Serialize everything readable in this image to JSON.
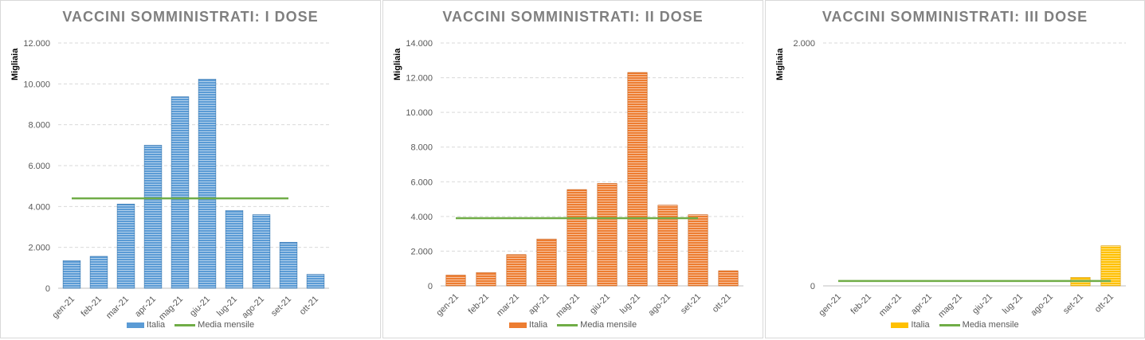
{
  "legend": {
    "series_label": "Italia",
    "avg_label": "Media mensile"
  },
  "colors": {
    "mean_line": "#70ad47",
    "grid": "#d9d9d9",
    "axis": "#bfbfbf",
    "tick_text": "#595959"
  },
  "chart_data": [
    {
      "type": "bar",
      "title": "VACCINI SOMMINISTRATI: I DOSE",
      "ylabel": "Migliaia",
      "xlabel": "",
      "ylim": [
        0,
        12000
      ],
      "yticks": [
        "0",
        "2.000",
        "4.000",
        "6.000",
        "8.000",
        "10.000",
        "12.000"
      ],
      "categories": [
        "gen-21",
        "feb-21",
        "mar-21",
        "apr-21",
        "mag-21",
        "giu-21",
        "lug-21",
        "ago-21",
        "set-21",
        "ott-21"
      ],
      "series": [
        {
          "name": "Italia",
          "values": [
            1350,
            1560,
            4120,
            7000,
            9370,
            10230,
            3800,
            3600,
            2250,
            680
          ],
          "color": "#5b9bd5"
        }
      ],
      "mean": {
        "name": "Media mensile",
        "value": 4400,
        "span": [
          "gen-21",
          "set-21"
        ]
      },
      "grid": true,
      "legend_position": "bottom"
    },
    {
      "type": "bar",
      "title": "VACCINI SOMMINISTRATI: II DOSE",
      "ylabel": "Migliaia",
      "xlabel": "",
      "ylim": [
        0,
        14000
      ],
      "yticks": [
        "0",
        "2.000",
        "4.000",
        "6.000",
        "8.000",
        "10.000",
        "12.000",
        "14.000"
      ],
      "categories": [
        "gen-21",
        "feb-21",
        "mar-21",
        "apr-21",
        "mag-21",
        "giu-21",
        "lug-21",
        "ago-21",
        "set-21",
        "ott-21"
      ],
      "series": [
        {
          "name": "Italia",
          "values": [
            620,
            770,
            1800,
            2700,
            5550,
            5900,
            12300,
            4650,
            4100,
            870
          ],
          "color": "#ed7d31"
        }
      ],
      "mean": {
        "name": "Media mensile",
        "value": 3900,
        "span": [
          "gen-21",
          "set-21"
        ]
      },
      "grid": true,
      "legend_position": "bottom"
    },
    {
      "type": "bar",
      "title": "VACCINI SOMMINISTRATI: III DOSE",
      "ylabel": "Migliaia",
      "xlabel": "",
      "ylim": [
        0,
        2000
      ],
      "yticks": [
        "0",
        "2.000"
      ],
      "categories": [
        "gen-21",
        "feb-21",
        "mar-21",
        "apr-21",
        "mag-21",
        "giu-21",
        "lug-21",
        "ago-21",
        "set-21",
        "ott-21"
      ],
      "series": [
        {
          "name": "Italia",
          "values": [
            0,
            0,
            0,
            0,
            0,
            0,
            0,
            0,
            70,
            330
          ],
          "color": "#ffc000"
        }
      ],
      "mean": {
        "name": "Media mensile",
        "value": 40,
        "span": [
          "gen-21",
          "ott-21"
        ]
      },
      "grid": true,
      "legend_position": "bottom"
    }
  ]
}
